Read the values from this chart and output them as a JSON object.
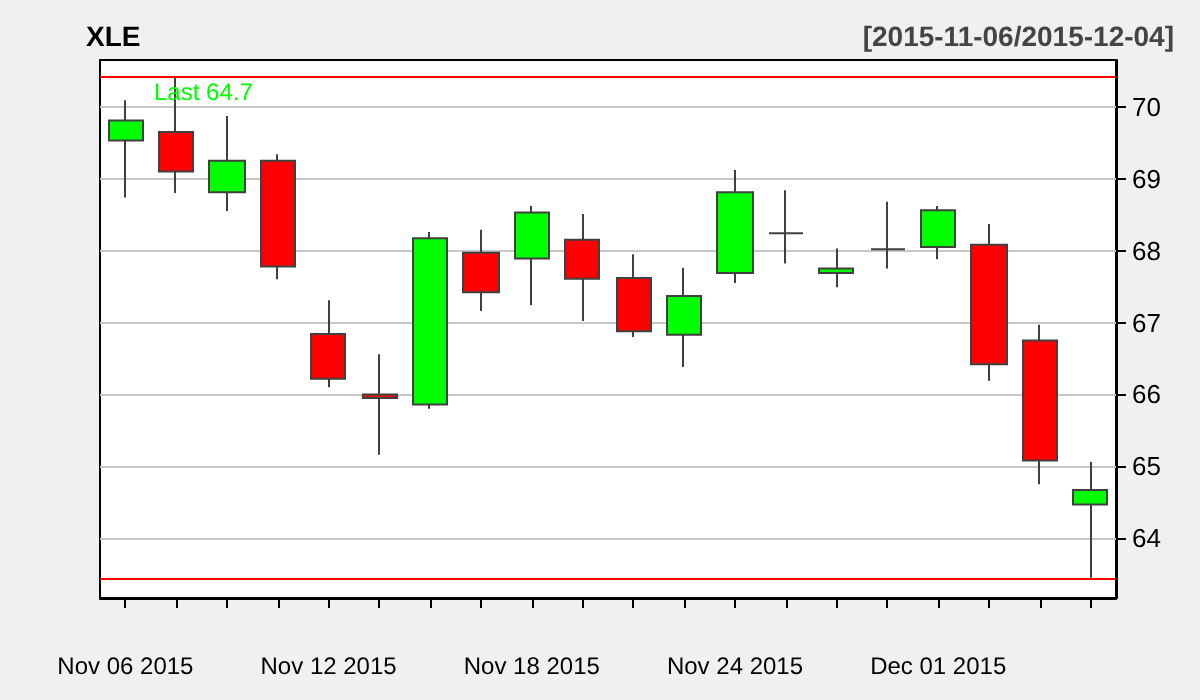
{
  "chart_data": {
    "type": "candlestick",
    "title": "XLE",
    "subtitle": "[2015-11-06/2015-12-04]",
    "categories": [
      "Nov 06 2015",
      null,
      null,
      null,
      "Nov 12 2015",
      null,
      null,
      null,
      "Nov 18 2015",
      null,
      null,
      null,
      "Nov 24 2015",
      null,
      null,
      null,
      "Dec 01 2015",
      null,
      null,
      null
    ],
    "ohlc": [
      [
        69.53,
        70.09,
        68.74,
        69.81
      ],
      [
        69.65,
        70.42,
        68.8,
        69.1
      ],
      [
        68.81,
        69.87,
        68.55,
        69.25
      ],
      [
        69.25,
        69.34,
        67.6,
        67.78
      ],
      [
        66.84,
        67.31,
        66.1,
        66.22
      ],
      [
        66.0,
        66.56,
        65.16,
        65.95
      ],
      [
        65.86,
        68.26,
        65.8,
        68.17
      ],
      [
        67.97,
        68.29,
        67.16,
        67.42
      ],
      [
        67.89,
        68.62,
        67.24,
        68.53
      ],
      [
        68.15,
        68.51,
        67.02,
        67.61
      ],
      [
        67.62,
        67.95,
        66.8,
        66.88
      ],
      [
        66.83,
        67.76,
        66.38,
        67.37
      ],
      [
        67.69,
        69.12,
        67.55,
        68.81
      ],
      [
        68.24,
        68.84,
        67.82,
        68.24
      ],
      [
        67.69,
        68.03,
        67.49,
        67.75
      ],
      [
        68.02,
        68.68,
        67.75,
        68.02
      ],
      [
        68.05,
        68.62,
        67.88,
        68.56
      ],
      [
        68.08,
        68.37,
        66.19,
        66.42
      ],
      [
        66.75,
        66.97,
        64.75,
        65.08
      ],
      [
        64.47,
        65.06,
        63.45,
        64.67
      ]
    ],
    "colors": [
      "#00ff00",
      "#ff0000",
      "#00ff00",
      "#ff0000",
      "#ff0000",
      "#ff0000",
      "#00ff00",
      "#ff0000",
      "#00ff00",
      "#ff0000",
      "#ff0000",
      "#00ff00",
      "#00ff00",
      "#404040",
      "#00ff00",
      "#404040",
      "#00ff00",
      "#ff0000",
      "#ff0000",
      "#00ff00"
    ],
    "ylim": [
      63.17,
      70.65
    ],
    "yticks": [
      64,
      65,
      66,
      67,
      68,
      69,
      70
    ],
    "grid": "y",
    "ref_lines": [
      {
        "axis": "y",
        "value": 70.42,
        "color": "#ff0000"
      },
      {
        "axis": "y",
        "value": 63.45,
        "color": "#ff0000"
      }
    ],
    "annotations": [
      "Last 64.7"
    ]
  }
}
